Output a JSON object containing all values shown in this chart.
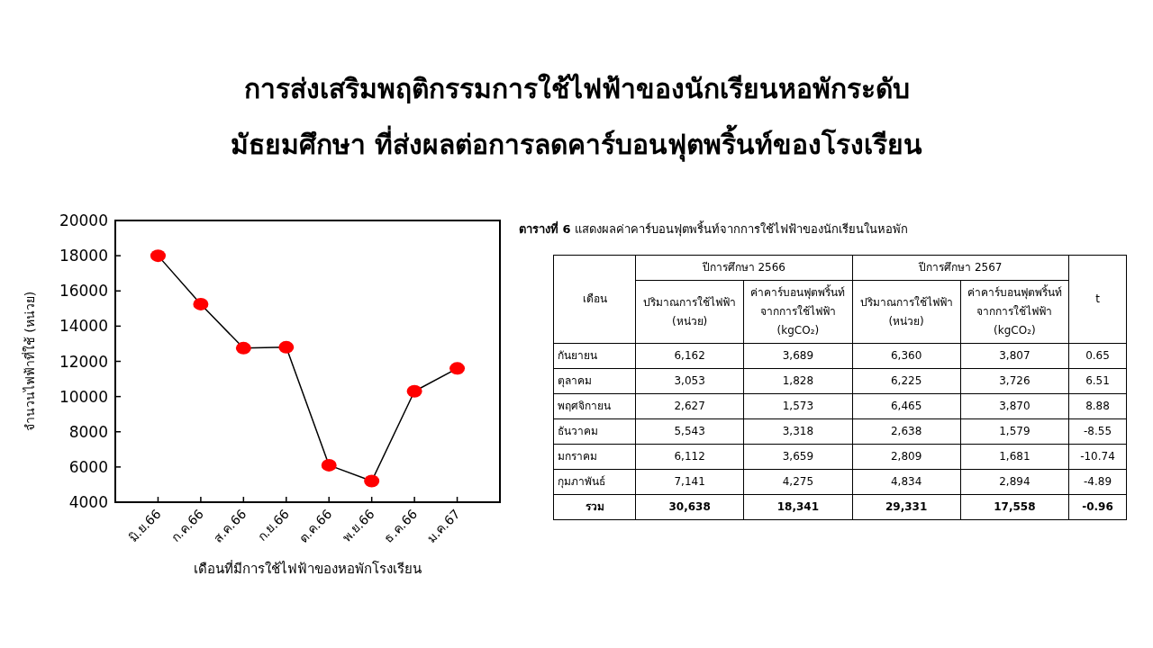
{
  "chart_data": [
    {
      "type": "line",
      "title": "การส่งเสริมพฤติกรรมการใช้ไฟฟ้าของนักเรียนหอพักระดับมัธยมศึกษา ที่ส่งผลต่อการลดคาร์บอนฟุตพริ้นท์ของโรงเรียน",
      "xlabel": "เดือนที่มีการใช้ไฟฟ้าของหอพักโรงเรียน",
      "ylabel": "จำนวนไฟฟ้าที่ใช้ (หน่วย)",
      "categories": [
        "มิ.ย.66",
        "ก.ค.66",
        "ส.ค.66",
        "ก.ย.66",
        "ต.ค.66",
        "พ.ย.66",
        "ธ.ค.66",
        "ม.ค.67"
      ],
      "series": [
        {
          "color": "#ff0000",
          "values": [
            18000,
            15250,
            12750,
            12800,
            6100,
            5200,
            10300,
            11600
          ]
        }
      ],
      "ylim": [
        4000,
        20000
      ],
      "yticks": [
        4000,
        6000,
        8000,
        10000,
        12000,
        14000,
        16000,
        18000,
        20000
      ],
      "marker": "circle",
      "line_style": "solid",
      "grid": false
    },
    {
      "type": "other",
      "title": "**ตารางที่ 6** แสดงผลค่าคาร์บอนฟุตพริ้นท์จากการใช้ไฟฟ้าของนักเรียนในหอพัก",
      "annotations": [
        "ปีการศึกษา 2566",
        "ปีการศึกษา 2567"
      ],
      "categories": [
        "เดือน",
        "ปริมาณการใช้ไฟฟ้า (หน่วย)",
        "ค่าคาร์บอนฟุตพริ้นท์จากการใช้ไฟฟ้า (kgCO₂)",
        "ปริมาณการใช้ไฟฟ้า (หน่วย)",
        "ค่าคาร์บอนฟุตพริ้นท์จากการใช้ไฟฟ้า (kgCO₂)",
        "t"
      ],
      "y_categories": [
        "กันยายน",
        "ตุลาคม",
        "พฤศจิกายน",
        "ธันวาคม",
        "มกราคม",
        "กุมภาพันธ์",
        "รวม"
      ],
      "cell_labels": [
        [
          "6,162",
          "3,689",
          "6,360",
          "3,807",
          "0.65"
        ],
        [
          "3,053",
          "1,828",
          "6,225",
          "3,726",
          "6.51"
        ],
        [
          "2,627",
          "1,573",
          "6,465",
          "3,870",
          "8.88"
        ],
        [
          "5,543",
          "3,318",
          "2,638",
          "1,579",
          "-8.55"
        ],
        [
          "6,112",
          "3,659",
          "2,809",
          "1,681",
          "-10.74"
        ],
        [
          "7,141",
          "4,275",
          "4,834",
          "2,894",
          "-4.89"
        ],
        [
          "30,638",
          "18,341",
          "29,331",
          "17,558",
          "-0.96"
        ]
      ]
    }
  ]
}
